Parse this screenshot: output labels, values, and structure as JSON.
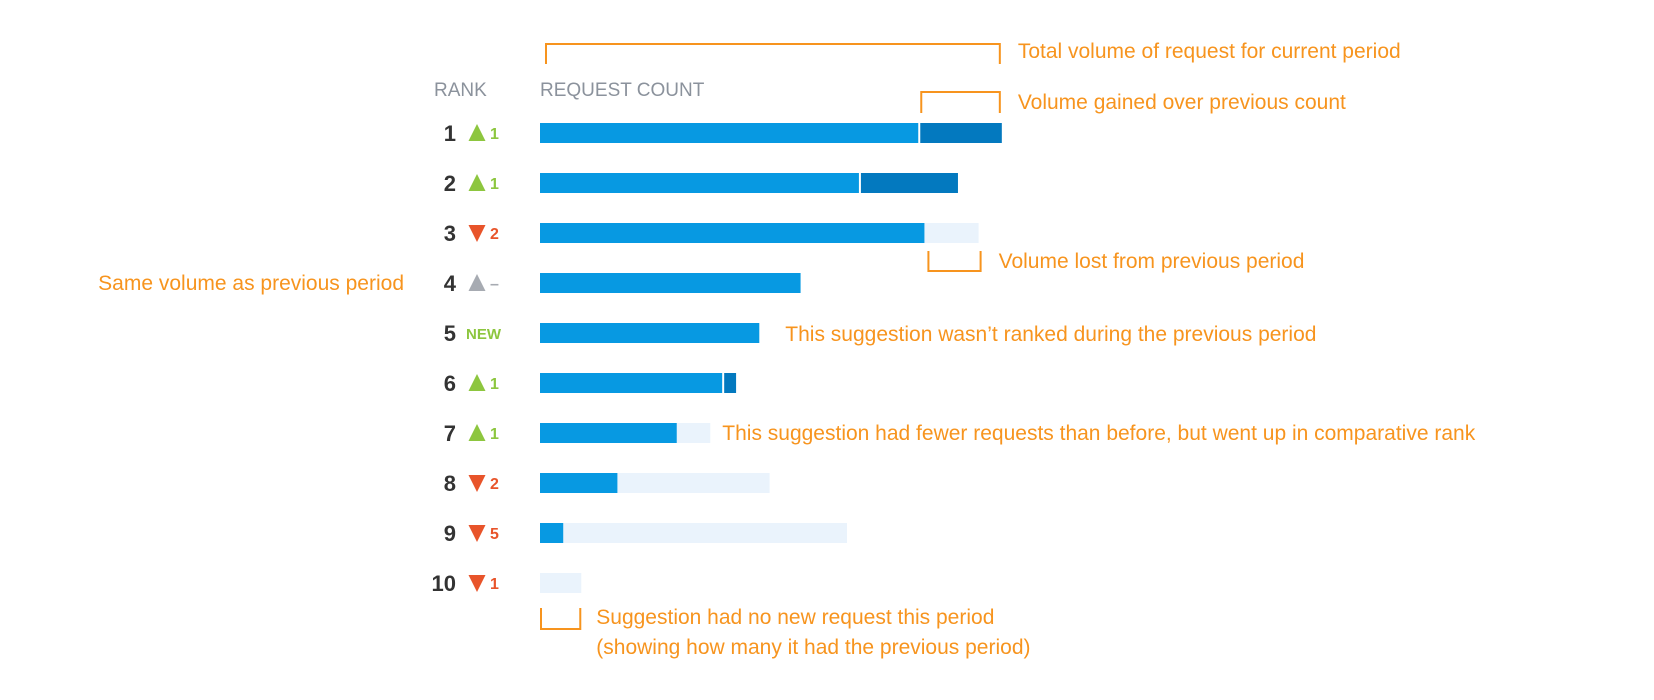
{
  "colors": {
    "bar": "#0799e2",
    "bar_gain": "#0379bf",
    "bar_lost": "#eaf3fc",
    "accent": "#f7941e",
    "rank_text": "#333333",
    "header": "#8b929c",
    "up": "#8dc63f",
    "down": "#e8542a",
    "same": "#a7abb2",
    "new": "#8dc63f"
  },
  "chart_data": {
    "type": "bar",
    "orientation": "horizontal",
    "column_headers": {
      "rank": "RANK",
      "count": "REQUEST COUNT"
    },
    "rows": [
      {
        "rank": "1",
        "change": "up",
        "change_label": "1",
        "previous": 73.5,
        "current": 89.5
      },
      {
        "rank": "2",
        "change": "up",
        "change_label": "1",
        "previous": 62.0,
        "current": 81.0
      },
      {
        "rank": "3",
        "change": "down",
        "change_label": "2",
        "previous": 85.0,
        "current": 74.5
      },
      {
        "rank": "4",
        "change": "same",
        "change_label": "–",
        "previous": 50.5,
        "current": 50.5
      },
      {
        "rank": "5",
        "change": "new",
        "change_label": "NEW",
        "previous": 0,
        "current": 42.5
      },
      {
        "rank": "6",
        "change": "up",
        "change_label": "1",
        "previous": 35.5,
        "current": 38.0
      },
      {
        "rank": "7",
        "change": "up",
        "change_label": "1",
        "previous": 33.0,
        "current": 26.5
      },
      {
        "rank": "8",
        "change": "down",
        "change_label": "2",
        "previous": 44.5,
        "current": 15.0
      },
      {
        "rank": "9",
        "change": "down",
        "change_label": "5",
        "previous": 59.5,
        "current": 4.5
      },
      {
        "rank": "10",
        "change": "down",
        "change_label": "1",
        "previous": 8.0,
        "current": 0
      }
    ],
    "xlim": [
      0,
      100
    ],
    "grid": false,
    "legend": "none",
    "annotations": [
      {
        "id": "total",
        "text": "Total volume of request for current period",
        "row": "1"
      },
      {
        "id": "gained",
        "text": "Volume gained over previous count",
        "row": "1"
      },
      {
        "id": "lost",
        "text": "Volume lost from previous period",
        "row": "3"
      },
      {
        "id": "same",
        "text": "Same volume as previous period",
        "row": "4"
      },
      {
        "id": "new",
        "text": "This suggestion wasn’t ranked during the previous period",
        "row": "5"
      },
      {
        "id": "fewer",
        "text": "This suggestion had fewer requests than before, but went up in comparative rank",
        "row": "7"
      },
      {
        "id": "none",
        "text": "Suggestion had no new request this period",
        "text2": "(showing how many it had the previous period)",
        "row": "10"
      }
    ]
  }
}
